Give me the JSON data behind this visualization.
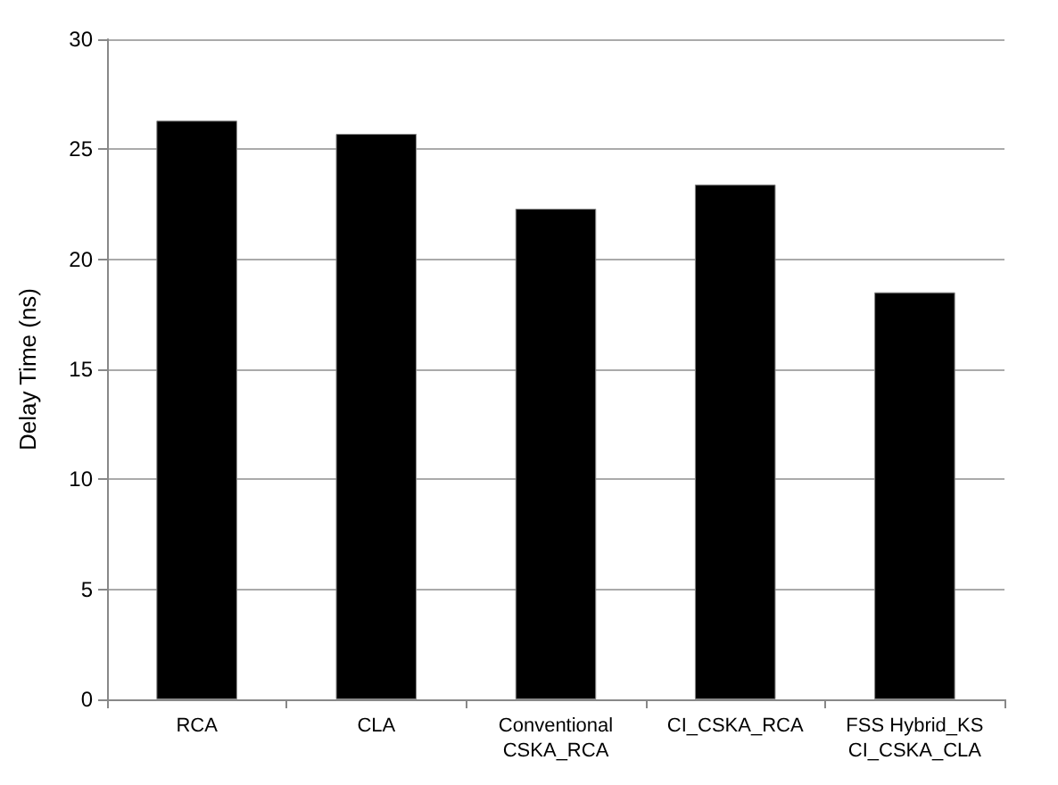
{
  "chart_data": {
    "type": "bar",
    "ylabel": "Delay Time (ns)",
    "categories": [
      "RCA",
      "CLA",
      "Conventional\nCSKA_RCA",
      "CI_CSKA_RCA",
      "FSS Hybrid_KS\nCI_CSKA_CLA"
    ],
    "values": [
      26.3,
      25.7,
      22.3,
      23.4,
      18.5
    ],
    "color": "#000000",
    "ylim": [
      0,
      30
    ],
    "yticks": [
      0,
      5,
      10,
      15,
      20,
      25,
      30
    ],
    "grid": "y"
  }
}
